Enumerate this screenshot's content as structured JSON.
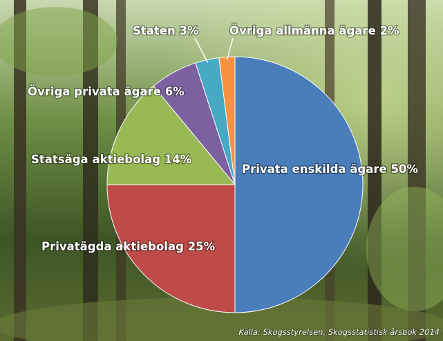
{
  "chart_data": {
    "type": "pie",
    "categories": [
      "Privata enskilda ägare",
      "Privatägda aktiebolag",
      "Statsäga aktiebolag",
      "Övriga privata ägare",
      "Staten",
      "Övriga allmänna ägare"
    ],
    "values": [
      50,
      25,
      14,
      6,
      3,
      2
    ],
    "value_labels": [
      "50%",
      "25%",
      "14%",
      "6%",
      "3%",
      "2%"
    ],
    "colors": [
      "#4a7ebb",
      "#be4b48",
      "#98b954",
      "#7d60a0",
      "#46aac5",
      "#f69240"
    ],
    "source": "Källa: Skogsstyrelsen, Skogsstatistisk årsbok 2014"
  }
}
